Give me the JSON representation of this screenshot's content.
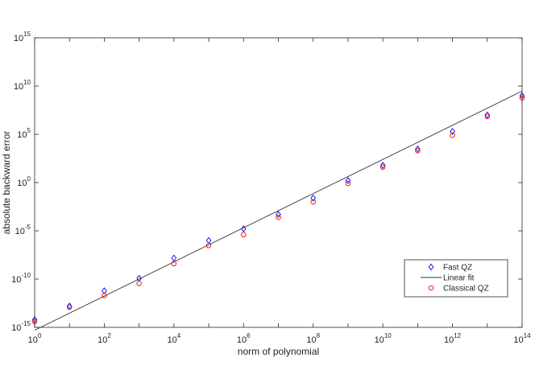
{
  "chart_data": {
    "type": "scatter",
    "xlabel": "norm of polynomial",
    "ylabel": "absolute backward error",
    "xscale": "log",
    "yscale": "log",
    "xlim": [
      1,
      100000000000000
    ],
    "ylim": [
      1e-15,
      1000000000000000.0
    ],
    "x_ticks": [
      {
        "base": "10",
        "exp": "0"
      },
      {
        "base": "10",
        "exp": "2"
      },
      {
        "base": "10",
        "exp": "4"
      },
      {
        "base": "10",
        "exp": "6"
      },
      {
        "base": "10",
        "exp": "8"
      },
      {
        "base": "10",
        "exp": "10"
      },
      {
        "base": "10",
        "exp": "12"
      },
      {
        "base": "10",
        "exp": "14"
      }
    ],
    "y_ticks": [
      {
        "base": "10",
        "exp": "-15"
      },
      {
        "base": "10",
        "exp": "-10"
      },
      {
        "base": "10",
        "exp": "-5"
      },
      {
        "base": "10",
        "exp": "0"
      },
      {
        "base": "10",
        "exp": "5"
      },
      {
        "base": "10",
        "exp": "10"
      },
      {
        "base": "10",
        "exp": "15"
      }
    ],
    "grid": false,
    "legend_position": "bottom-right",
    "series": [
      {
        "name": "Fast QZ",
        "kind": "marker",
        "marker": "diamond",
        "color": "#0000ff",
        "x": [
          1,
          10,
          100,
          1000,
          10000,
          100000,
          1000000,
          10000000,
          100000000,
          1000000000,
          10000000000,
          100000000000,
          1000000000000,
          10000000000000,
          100000000000000
        ],
        "y": [
          6e-15,
          1.6e-13,
          6e-12,
          1.2e-10,
          1.5e-08,
          1e-06,
          1.6e-05,
          0.0005,
          0.025,
          1.6,
          60,
          3000.0,
          200000.0,
          10000000.0,
          1000000000.0
        ]
      },
      {
        "name": "Linear fit",
        "kind": "line",
        "color": "#333333",
        "x": [
          1,
          100000000000000
        ],
        "y": [
          5e-16,
          3000000000.0
        ]
      },
      {
        "name": "Classical QZ",
        "kind": "marker",
        "marker": "circle",
        "color": "#ff0000",
        "x": [
          1,
          10,
          100,
          1000,
          10000,
          100000,
          1000000,
          10000000,
          100000000,
          1000000000,
          10000000000,
          100000000000,
          1000000000000,
          10000000000000,
          100000000000000
        ],
        "y": [
          4e-15,
          1.2e-13,
          2e-12,
          3.5e-11,
          4e-09,
          3e-07,
          4e-06,
          0.00025,
          0.01,
          0.8,
          40,
          2000.0,
          80000.0,
          7000000.0,
          600000000.0
        ]
      }
    ]
  }
}
